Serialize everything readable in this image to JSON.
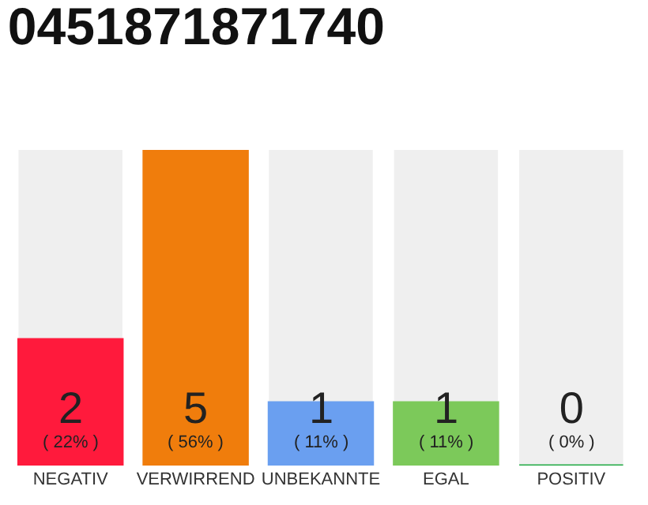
{
  "chart_data": {
    "type": "bar",
    "title": "0451871871740",
    "categories": [
      "NEGATIV",
      "VERWIRREND",
      "UNBEKANNTE",
      "EGAL",
      "POSITIV"
    ],
    "values": [
      2,
      5,
      1,
      1,
      0
    ],
    "colors": [
      "#ff1a3c",
      "#f07d0c",
      "#6a9ff0",
      "#7cc95a",
      "#22aa44"
    ],
    "value_labels": [
      "2\n( 22% )",
      "5\n( 56% )",
      "1\n( 11% )",
      "1\n( 11% )",
      "0\n( 0% )"
    ],
    "ylim": [
      0,
      5
    ],
    "tick_labels": "x",
    "grid": false,
    "legend": false
  }
}
